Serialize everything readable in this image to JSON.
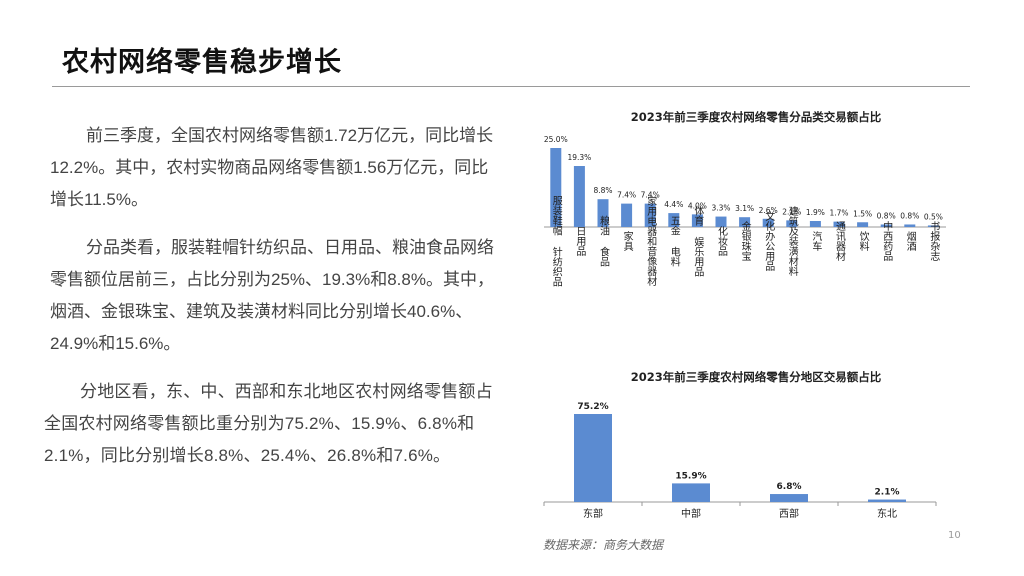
{
  "slide": {
    "title": "农村网络零售稳步增长",
    "paragraphs": [
      "前三季度，全国农村网络零售额1.72万亿元，同比增长12.2%。其中，农村实物商品网络零售额1.56万亿元，同比增长11.5%。",
      "分品类看，服装鞋帽针纺织品、日用品、粮油食品网络零售额位居前三，占比分别为25%、19.3%和8.8%。其中，烟酒、金银珠宝、建筑及装潢材料同比分别增长40.6%、24.9%和15.6%。",
      "分地区看，东、中、西部和东北地区农村网络零售额占全国农村网络零售额比重分别为75.2%、15.9%、6.8%和2.1%，同比分别增长8.8%、25.4%、26.8%和7.6%。"
    ],
    "page_number": "10",
    "source": "数据来源：商务大数据",
    "colors": {
      "bar": "#5b8bd1",
      "axis": "#999999",
      "title_rule": "#9a9a9a"
    }
  },
  "chart_data": [
    {
      "type": "bar",
      "title": "2023年前三季度农村网络零售分品类交易额占比",
      "categories": [
        "服装鞋帽 针纺织品",
        "日用品",
        "粮油 食品",
        "家具",
        "家用电器和音像器材",
        "五金 电料",
        "体育 娱乐用品",
        "化妆品",
        "金银珠宝",
        "文化办公用品",
        "建筑及装潢材料",
        "汽车",
        "通讯器材",
        "饮料",
        "中西药品",
        "烟酒",
        "书报杂志"
      ],
      "values": [
        25.0,
        19.3,
        8.8,
        7.4,
        7.4,
        4.4,
        4.0,
        3.3,
        3.1,
        2.6,
        2.1,
        1.9,
        1.7,
        1.5,
        0.8,
        0.8,
        0.5
      ],
      "value_labels": [
        "25.0%",
        "19.3%",
        "8.8%",
        "7.4%",
        "7.4%",
        "4.4%",
        "4.0%",
        "3.3%",
        "3.1%",
        "2.6%",
        "2.1%",
        "1.9%",
        "1.7%",
        "1.5%",
        "0.8%",
        "0.8%",
        "0.5%"
      ],
      "ylim": [
        0,
        25
      ],
      "grid": false,
      "legend": "none"
    },
    {
      "type": "bar",
      "title": "2023年前三季度农村网络零售分地区交易额占比",
      "categories": [
        "东部",
        "中部",
        "西部",
        "东北"
      ],
      "values": [
        75.2,
        15.9,
        6.8,
        2.1
      ],
      "value_labels": [
        "75.2%",
        "15.9%",
        "6.8%",
        "2.1%"
      ],
      "ylim": [
        0,
        75.2
      ],
      "grid": false,
      "legend": "none"
    }
  ]
}
